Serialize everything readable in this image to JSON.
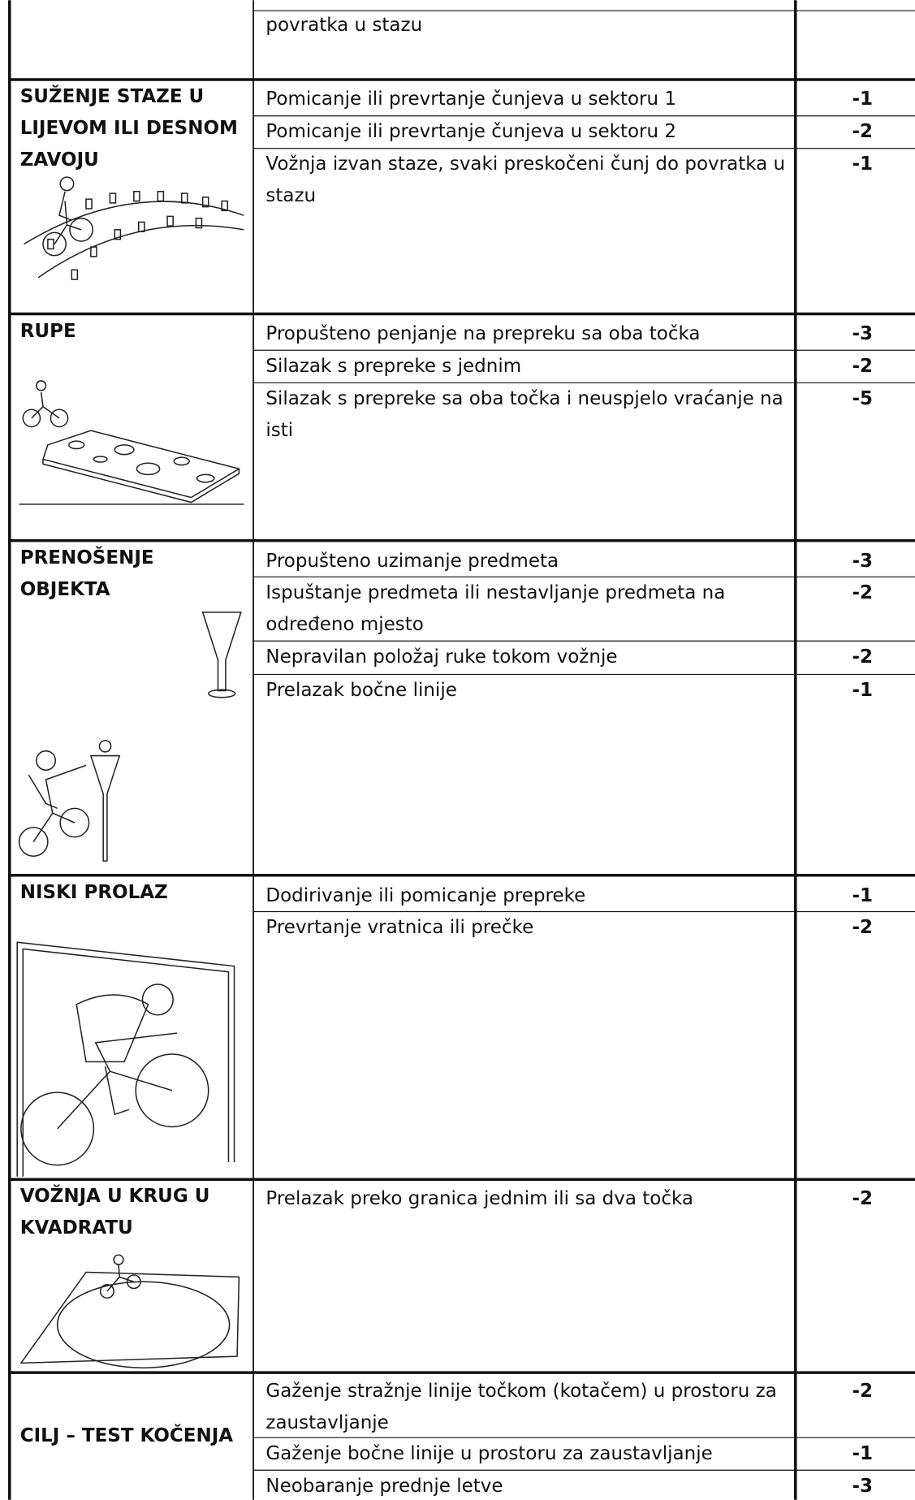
{
  "rows": [
    {
      "items": [
        {
          "text": "povratka u stazu"
        }
      ]
    },
    {
      "title": "SUŽENJE STAZE U LIJEVOM ILI DESNOM ZAVOJU",
      "items": [
        {
          "text": "Pomicanje ili prevrtanje čunjeva u sektoru 1",
          "penalty": -1
        },
        {
          "text": "Pomicanje ili prevrtanje čunjeva u sektoru 2",
          "penalty": -2
        },
        {
          "text": "Vožnja izvan staze, svaki preskočeni čunj do povratka u stazu",
          "penalty": -1
        }
      ]
    },
    {
      "title": "RUPE",
      "items": [
        {
          "text": "Propušteno penjanje na prepreku sa oba točka",
          "penalty": -3
        },
        {
          "text": "Silazak s prepreke s jednim",
          "penalty": -2
        },
        {
          "text": "Silazak s prepreke sa oba točka i neuspjelo vraćanje na isti",
          "penalty": -5
        }
      ]
    },
    {
      "title": "PRENOŠENJE OBJEKTA",
      "items": [
        {
          "text": "Propušteno uzimanje predmeta",
          "penalty": -3
        },
        {
          "text": "Ispuštanje predmeta ili nestavljanje predmeta na određeno mjesto",
          "penalty": -2
        },
        {
          "text": "Nepravilan položaj ruke tokom vožnje",
          "penalty": -2
        },
        {
          "text": "Prelazak bočne linije",
          "penalty": -1
        }
      ]
    },
    {
      "title": "NISKI PROLAZ",
      "items": [
        {
          "text": "Dodirivanje ili pomicanje prepreke",
          "penalty": -1
        },
        {
          "text": "Prevrtanje vratnica ili prečke",
          "penalty": -2
        }
      ]
    },
    {
      "title": "VOŽNJA U KRUG U KVADRATU",
      "items": [
        {
          "text": "Prelazak preko granica jednim ili sa dva točka",
          "penalty": -2
        }
      ]
    },
    {
      "title": "CILJ – TEST KOČENJA",
      "items": [
        {
          "text": "Gaženje stražnje linije točkom (kotačem) u prostoru za zaustavljanje",
          "penalty": -2
        },
        {
          "text": "Gaženje  bočne linije u prostoru za zaustavljanje",
          "penalty": -1
        },
        {
          "text": "Neobaranje prednje letve",
          "penalty": -3
        }
      ]
    }
  ]
}
